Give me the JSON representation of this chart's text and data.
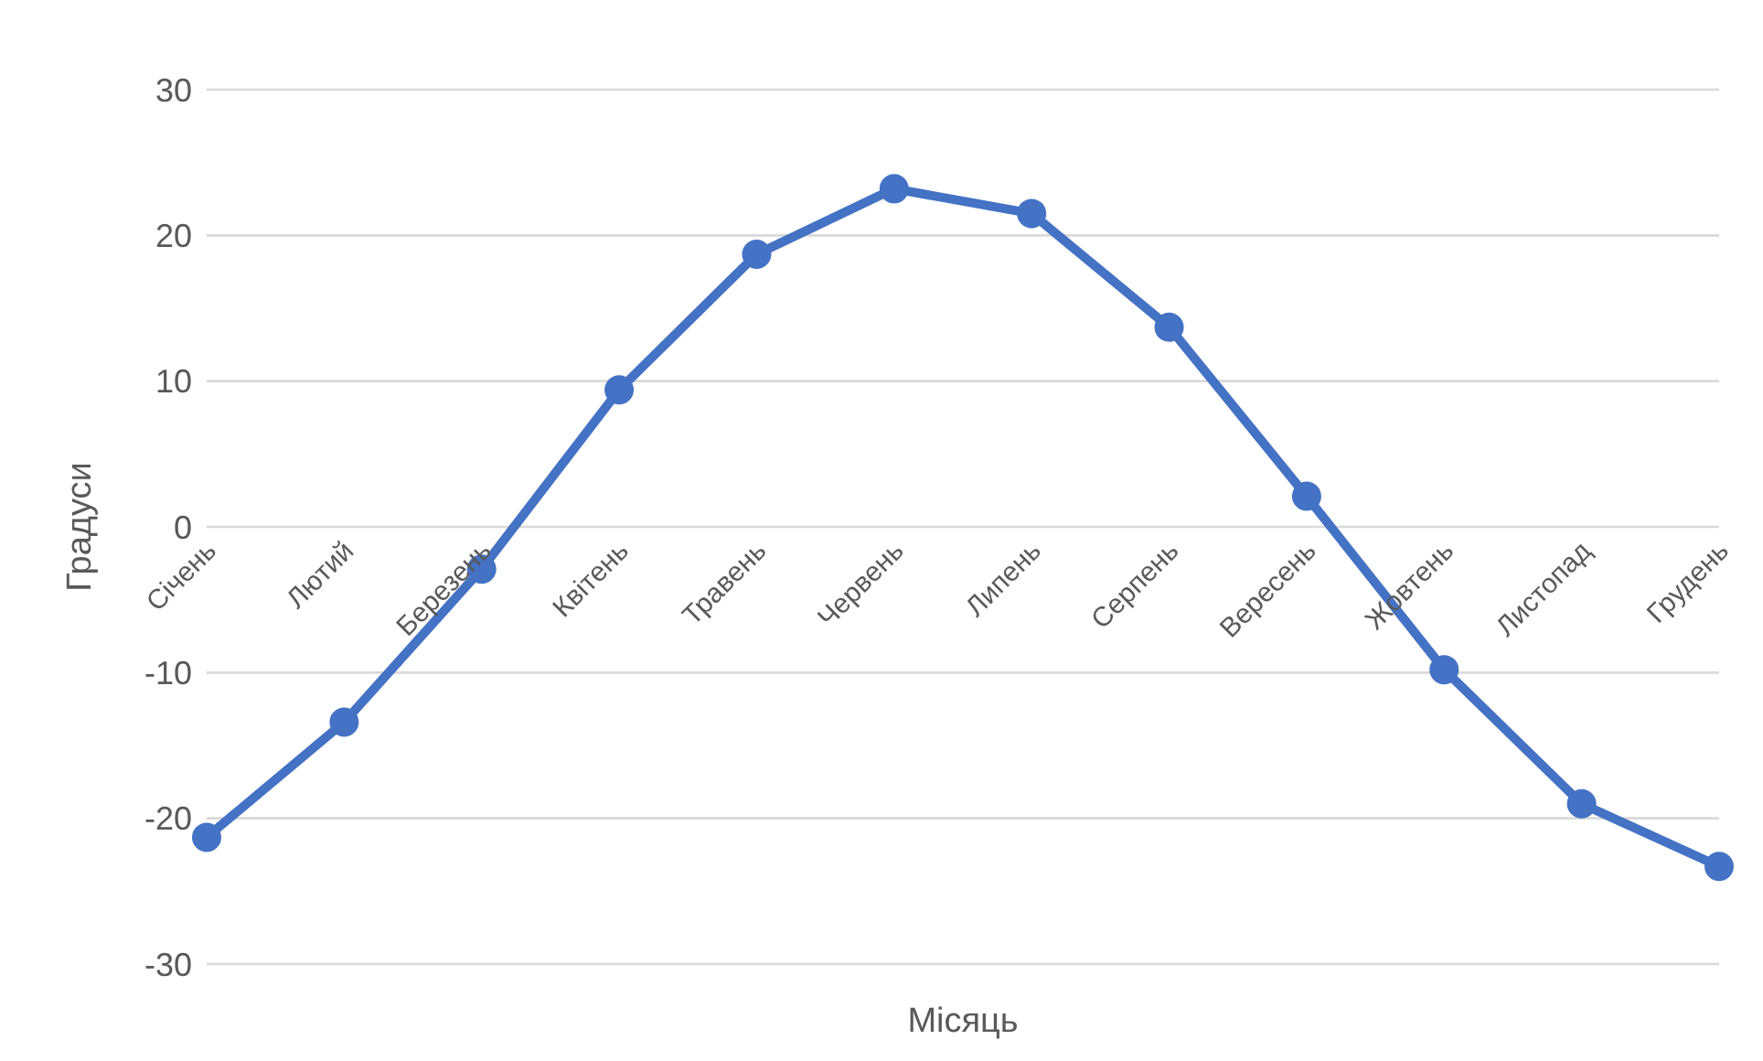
{
  "chart_data": {
    "type": "line",
    "xlabel": "Місяць",
    "ylabel": "Градуси",
    "categories": [
      "Січень",
      "Лютий",
      "Березень",
      "Квітень",
      "Травень",
      "Червень",
      "Липень",
      "Серпень",
      "Вересень",
      "Жовтень",
      "Листопад",
      "Грудень"
    ],
    "series": [
      {
        "color": "#4472c4",
        "values": [
          -21.3,
          -13.4,
          -2.9,
          9.4,
          18.7,
          23.2,
          21.5,
          13.7,
          2.1,
          -9.8,
          -19.0,
          -23.3
        ]
      }
    ],
    "ylim": [
      -30,
      30
    ],
    "yticks": [
      -30,
      -20,
      -10,
      0,
      10,
      20,
      30
    ],
    "grid": "y",
    "legend": false,
    "marker": "circle",
    "line_style": "solid"
  }
}
